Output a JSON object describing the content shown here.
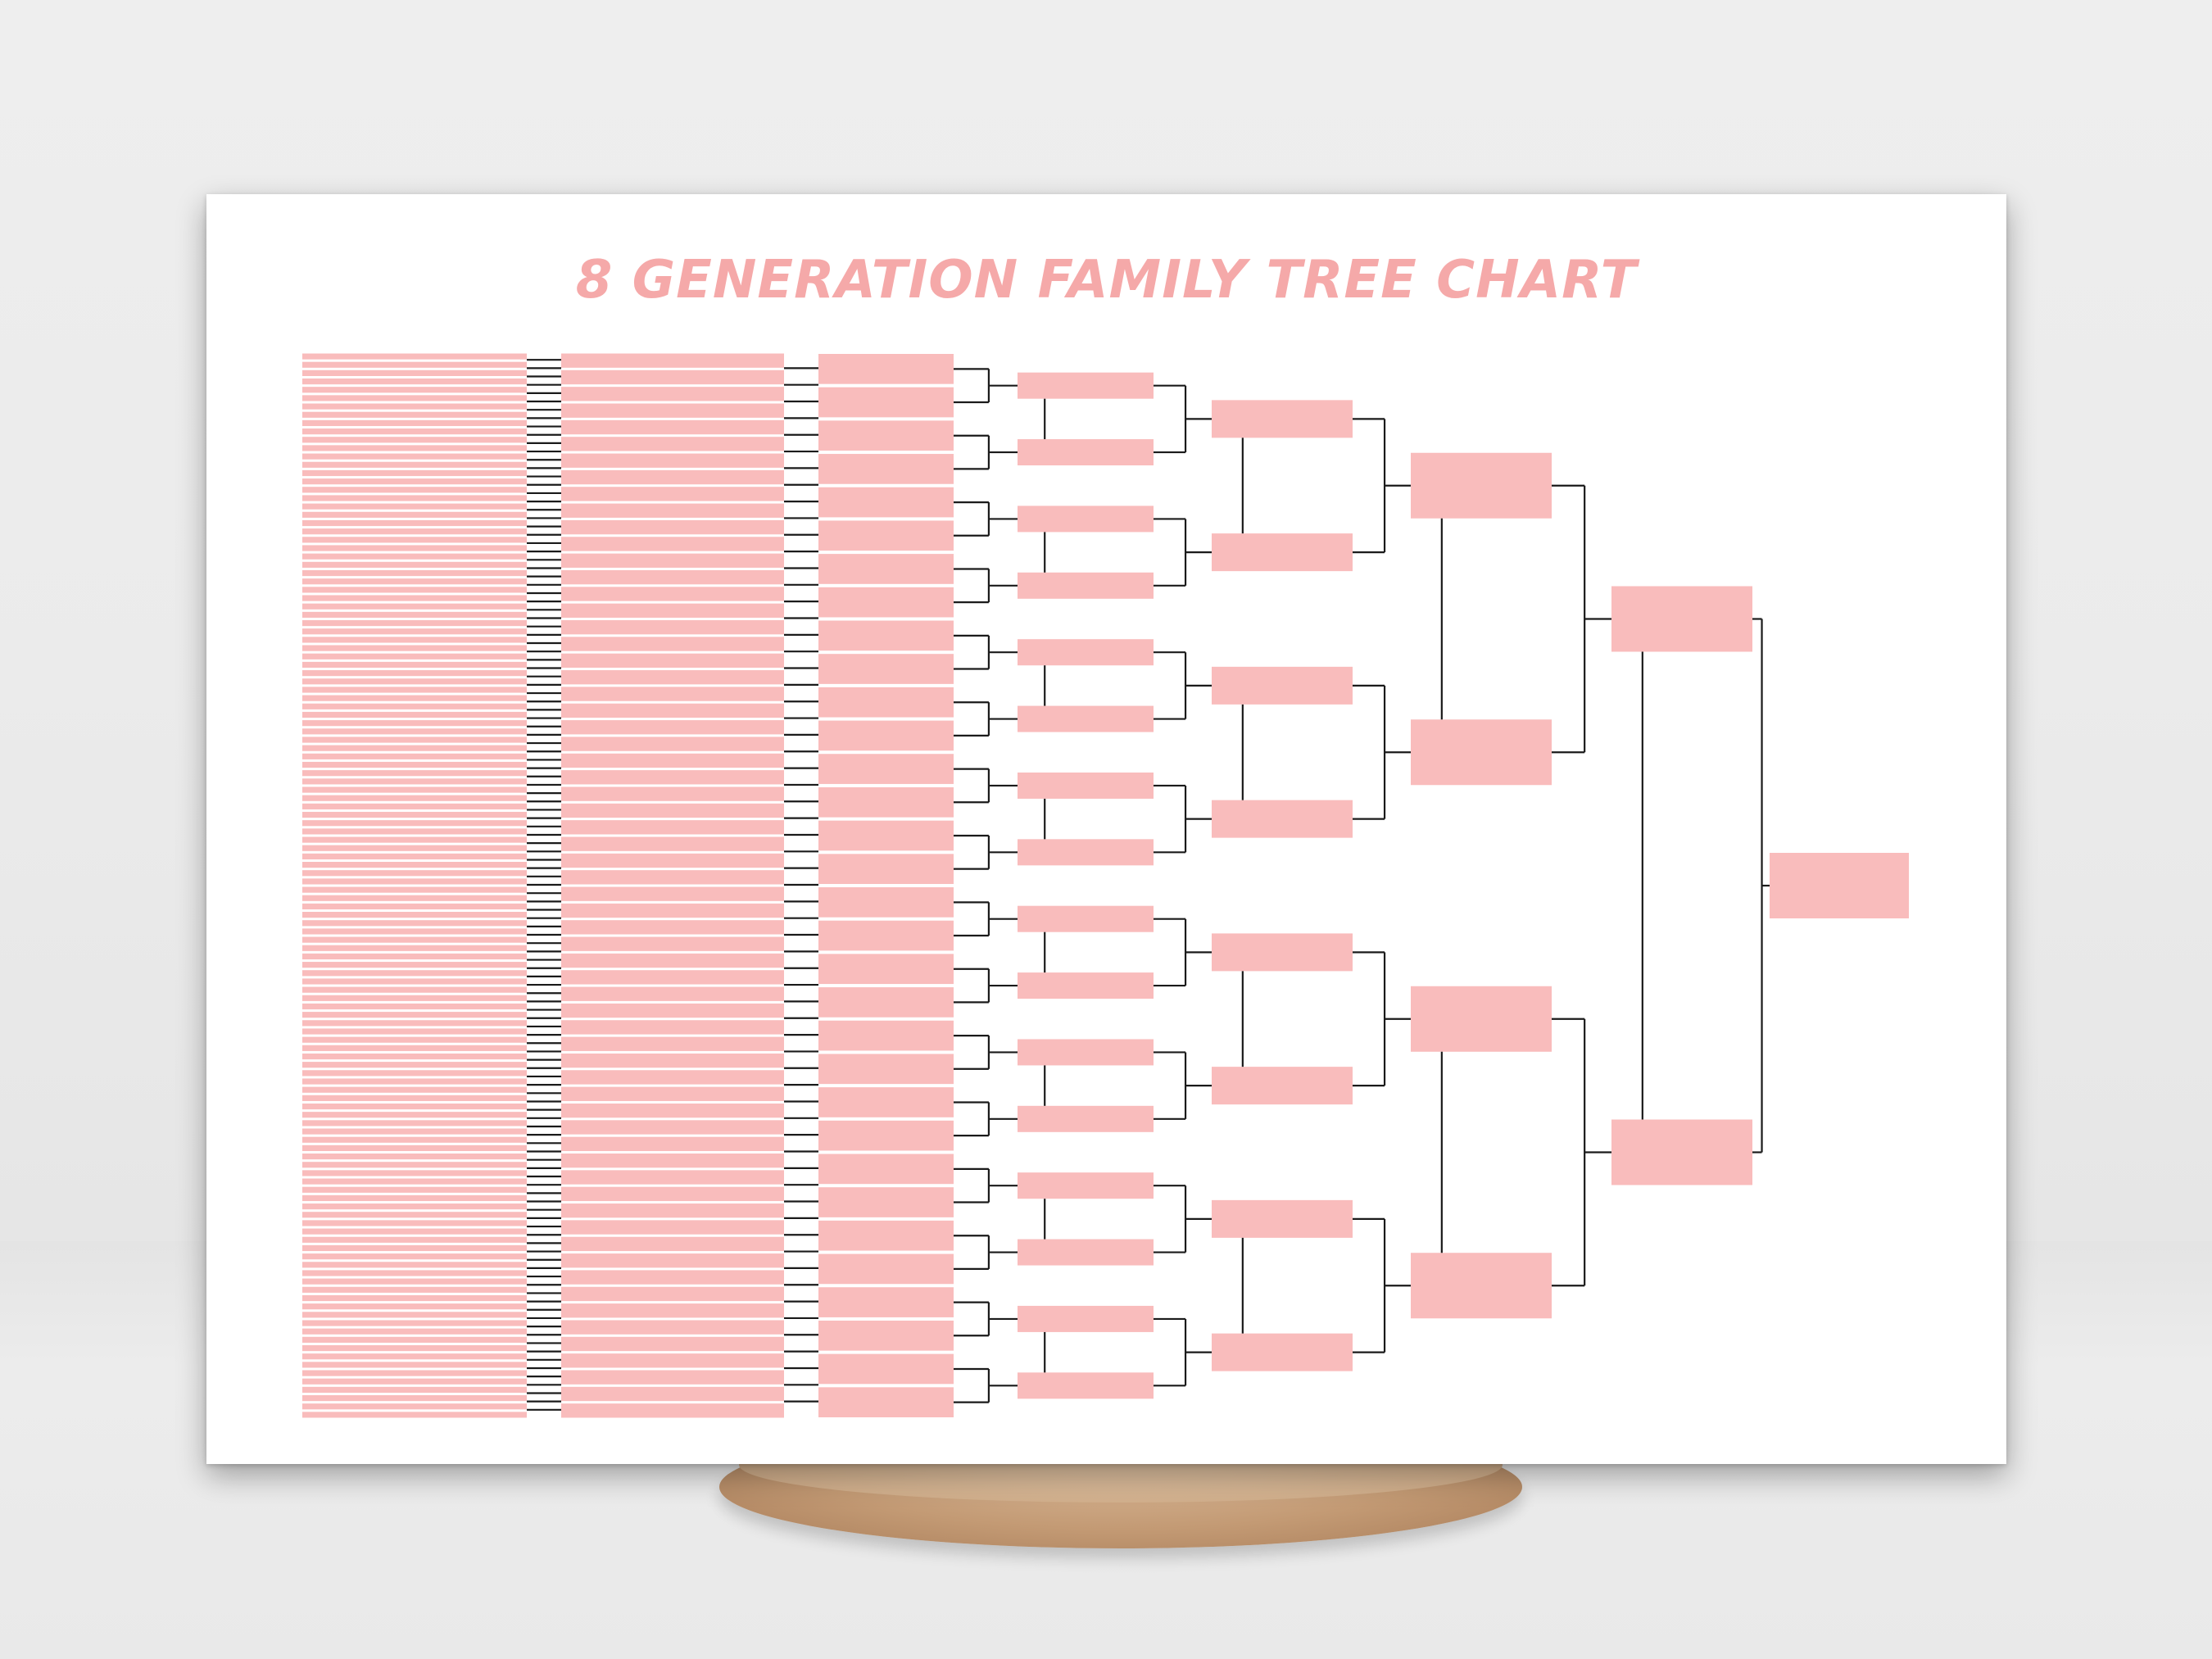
{
  "chart": {
    "title": "8 GENERATION FAMILY TREE CHART",
    "generations": 8
  },
  "colors": {
    "box_fill": "#f9bcbc",
    "title": "#f5a9a9",
    "connector": "#1a1a1a",
    "paper": "#ffffff"
  }
}
